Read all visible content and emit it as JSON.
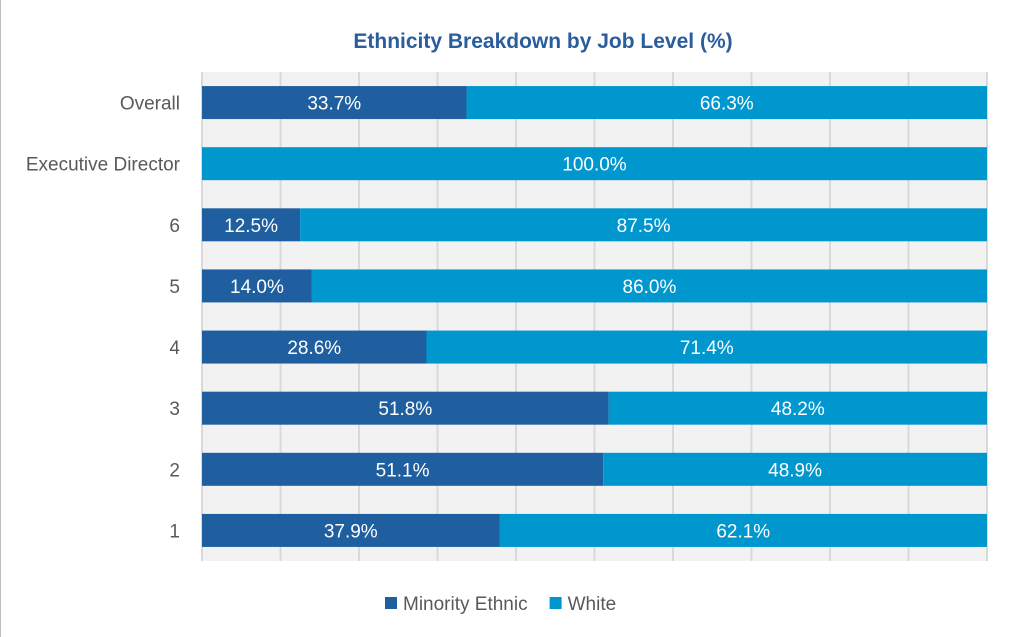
{
  "chart_data": {
    "type": "bar",
    "orientation": "horizontal",
    "stacked": true,
    "title": "Ethnicity Breakdown by Job Level (%)",
    "categories": [
      "Overall",
      "Executive Director",
      "6",
      "5",
      "4",
      "3",
      "2",
      "1"
    ],
    "series": [
      {
        "name": "Minority Ethnic",
        "color": "#1f5f9f",
        "values": [
          33.7,
          0,
          12.5,
          14.0,
          28.6,
          51.8,
          51.1,
          37.9
        ],
        "labels": [
          "33.7%",
          "",
          "12.5%",
          "14.0%",
          "28.6%",
          "51.8%",
          "51.1%",
          "37.9%"
        ]
      },
      {
        "name": "White",
        "color": "#0097cf",
        "values": [
          66.3,
          100.0,
          87.5,
          86.0,
          71.4,
          48.2,
          48.9,
          62.1
        ],
        "labels": [
          "66.3%",
          "100.0%",
          "87.5%",
          "86.0%",
          "71.4%",
          "48.2%",
          "48.9%",
          "62.1%"
        ]
      }
    ],
    "xlim": [
      0,
      100
    ],
    "grid": true,
    "legend": "bottom",
    "title_color": "#2a5d9c",
    "plot_background": "#f2f2f2"
  }
}
